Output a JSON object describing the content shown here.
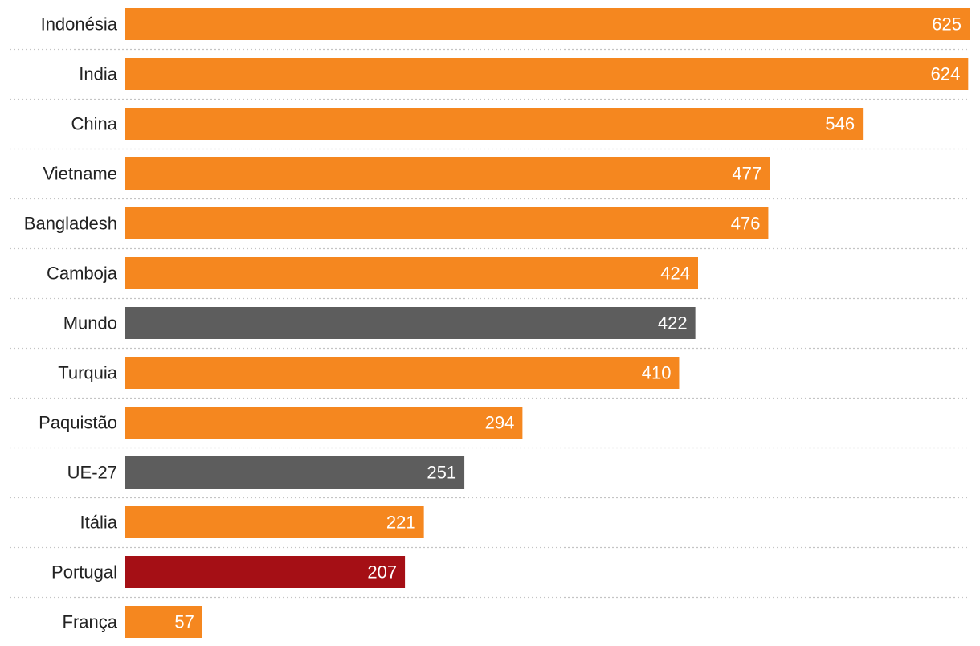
{
  "chart_data": {
    "type": "bar",
    "orientation": "horizontal",
    "categories": [
      "Indonésia",
      "India",
      "China",
      "Vietname",
      "Bangladesh",
      "Camboja",
      "Mundo",
      "Turquia",
      "Paquistão",
      "UE-27",
      "Itália",
      "Portugal",
      "França"
    ],
    "values": [
      625,
      624,
      546,
      477,
      476,
      424,
      422,
      410,
      294,
      251,
      221,
      207,
      57
    ],
    "value_labels": [
      "625",
      "624",
      "546",
      "477",
      "476",
      "424",
      "422",
      "410",
      "294",
      "251",
      "221",
      "207",
      "57"
    ],
    "bar_colors": [
      "#f5871f",
      "#f5871f",
      "#f5871f",
      "#f5871f",
      "#f5871f",
      "#f5871f",
      "#5d5d5d",
      "#f5871f",
      "#f5871f",
      "#5d5d5d",
      "#f5871f",
      "#a50f15",
      "#f5871f"
    ],
    "colors": {
      "default": "#f5871f",
      "aggregate": "#5d5d5d",
      "highlight": "#a50f15"
    },
    "xlim": [
      0,
      625
    ],
    "title": "",
    "xlabel": "",
    "ylabel": "",
    "grid": false,
    "legend": "none"
  }
}
